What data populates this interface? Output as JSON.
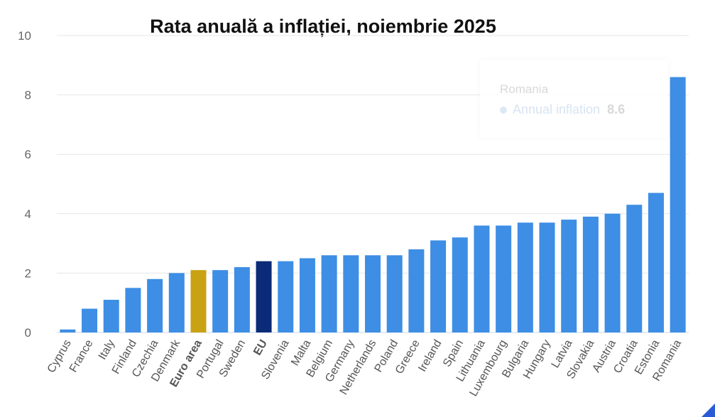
{
  "chart_data": {
    "type": "bar",
    "title": "Rata anuală a inflației, noiembrie 2025",
    "xlabel": "",
    "ylabel": "",
    "ylim": [
      0,
      10
    ],
    "yticks": [
      "0",
      "2",
      "4",
      "6",
      "8",
      "10"
    ],
    "grid": true,
    "categories": [
      "Cyprus",
      "France",
      "Italy",
      "Finland",
      "Czechia",
      "Denmark",
      "Euro area",
      "Portugal",
      "Sweden",
      "EU",
      "Slovenia",
      "Malta",
      "Belgium",
      "Germany",
      "Netherlands",
      "Poland",
      "Greece",
      "Ireland",
      "Spain",
      "Lithuania",
      "Luxembourg",
      "Bulgaria",
      "Hungary",
      "Latvia",
      "Slovakia",
      "Austria",
      "Croatia",
      "Estonia",
      "Romania"
    ],
    "values": [
      0.1,
      0.8,
      1.1,
      1.5,
      1.8,
      2.0,
      2.1,
      2.1,
      2.2,
      2.4,
      2.4,
      2.5,
      2.6,
      2.6,
      2.6,
      2.6,
      2.8,
      3.1,
      3.2,
      3.6,
      3.6,
      3.7,
      3.7,
      3.8,
      3.9,
      4.0,
      4.3,
      4.7,
      8.6
    ],
    "highlight": {
      "Euro area": "#c9a214",
      "EU": "#0b2a78"
    },
    "bold_categories": [
      "Euro area",
      "EU"
    ],
    "bar_color": "#3d8ee4",
    "tooltip": {
      "category": "Romania",
      "series": "Annual inflation",
      "value": "8.6"
    }
  }
}
